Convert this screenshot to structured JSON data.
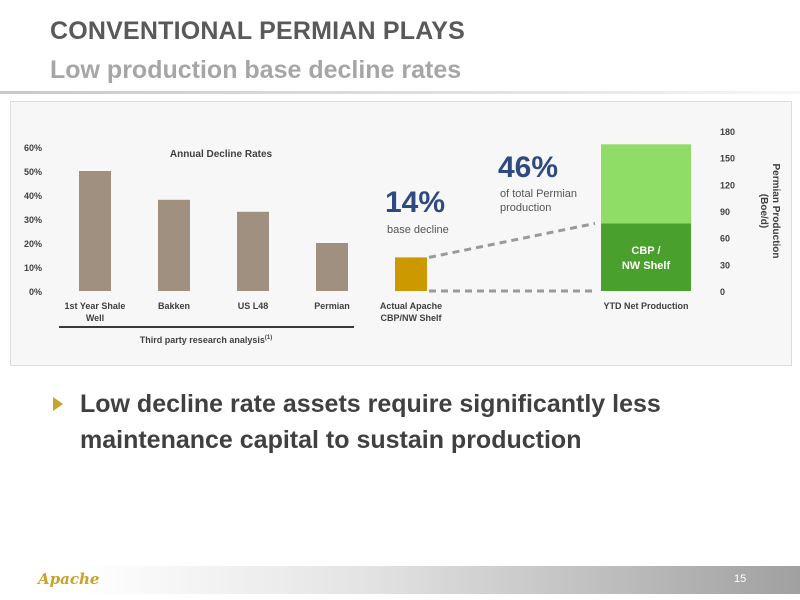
{
  "slide": {
    "title": "CONVENTIONAL PERMIAN PLAYS",
    "subtitle": "Low production base decline rates",
    "bullet_text": "Low decline rate assets require significantly less maintenance capital to sustain production",
    "logo_text": "Apache",
    "page_number": "15"
  },
  "chart_data": [
    {
      "type": "bar",
      "title": "Annual Decline Rates",
      "categories": [
        [
          "1st Year Shale",
          "Well"
        ],
        [
          "Bakken"
        ],
        [
          "US L48"
        ],
        [
          "Permian"
        ],
        [
          "Actual Apache",
          "CBP/NW Shelf"
        ]
      ],
      "values": [
        0.5,
        0.38,
        0.33,
        0.2,
        0.14
      ],
      "colors": [
        "#a09080",
        "#a09080",
        "#a09080",
        "#a09080",
        "#cc9a00"
      ],
      "ylim": [
        0,
        0.6
      ],
      "yticks": [
        "0%",
        "10%",
        "20%",
        "30%",
        "40%",
        "50%",
        "60%"
      ],
      "group_label": "Third party research analysis",
      "group_label_sup": "(1)",
      "annotation": {
        "value": "14%",
        "text": "base decline"
      }
    },
    {
      "type": "bar",
      "stacked": true,
      "categories": [
        "YTD Net Production"
      ],
      "ylabel": [
        "Permian Production",
        "(Boe/d)"
      ],
      "ylim": [
        0,
        180
      ],
      "yticks": [
        "0",
        "30",
        "60",
        "90",
        "120",
        "150",
        "180"
      ],
      "total": 165,
      "segments": [
        {
          "label": [
            "CBP /",
            "NW Shelf"
          ],
          "value": 76,
          "color": "#4aa02c"
        },
        {
          "label": "",
          "value": 89,
          "color": "#8fdc66"
        }
      ],
      "annotation": {
        "value": "46%",
        "text": [
          "of total Permian",
          "production"
        ]
      }
    }
  ]
}
